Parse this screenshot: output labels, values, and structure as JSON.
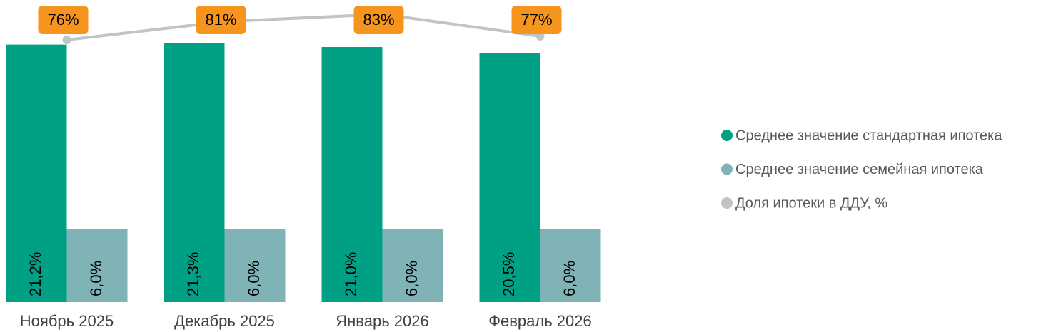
{
  "chart_data": {
    "type": "bar",
    "categories": [
      "Ноябрь 2025",
      "Декабрь 2025",
      "Январь 2026",
      "Февраль 2026"
    ],
    "series": [
      {
        "name": "Среднее значение стандартная ипотека",
        "color": "#00a084",
        "type": "bar",
        "values": [
          21.2,
          21.3,
          21.0,
          20.5
        ],
        "value_labels": [
          "21,2%",
          "21,3%",
          "21,0%",
          "20,5%"
        ]
      },
      {
        "name": "Среднее значение семейная ипотека",
        "color": "#7fb3b5",
        "type": "bar",
        "values": [
          6.0,
          6.0,
          6.0,
          6.0
        ],
        "value_labels": [
          "6,0%",
          "6,0%",
          "6,0%",
          "6,0%"
        ]
      },
      {
        "name": "Доля ипотеки в ДДУ, %",
        "color": "#c0c4c6",
        "type": "line",
        "axis": "y2",
        "values": [
          76,
          81,
          83,
          77
        ],
        "value_labels": [
          "76%",
          "81%",
          "83%",
          "77%"
        ]
      }
    ],
    "ylim": [
      0,
      23.7
    ],
    "y2lim": [
      4.4,
      83
    ],
    "legend": "right"
  }
}
